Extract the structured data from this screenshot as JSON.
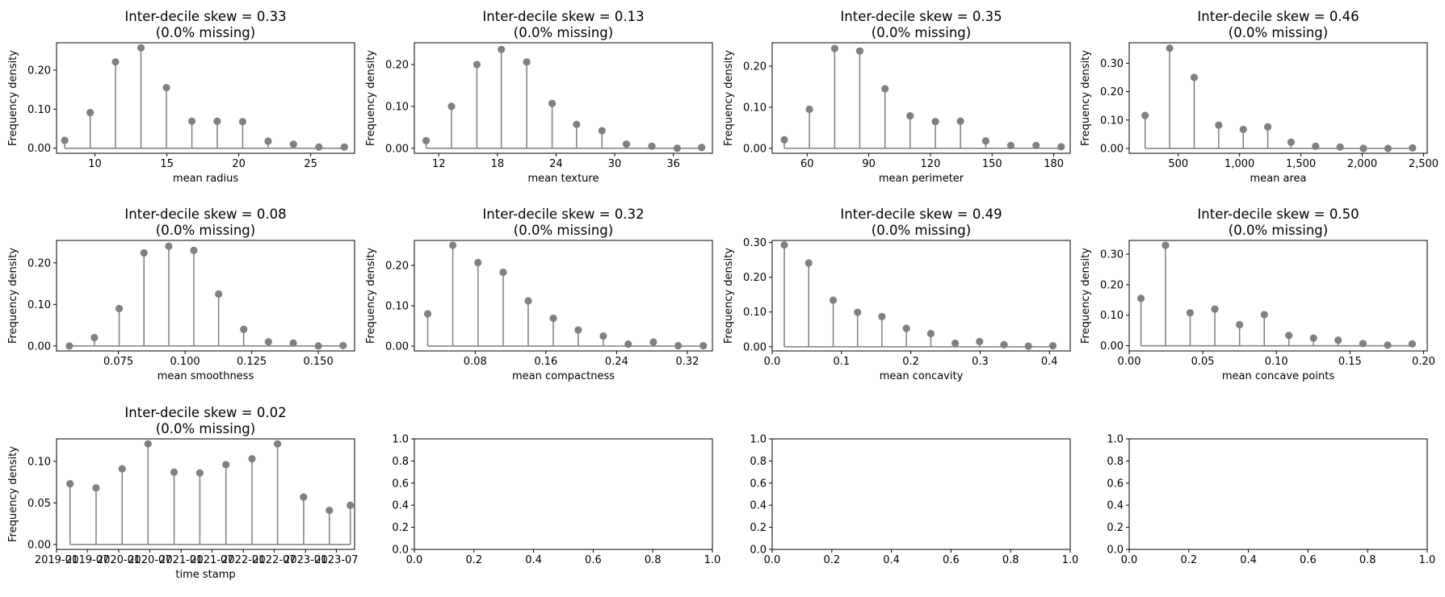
{
  "colors": {
    "stem": "#7f7f7f",
    "marker": "#808080",
    "axes": "#000000"
  },
  "chart_data": [
    {
      "type": "stem",
      "title": "Inter-decile skew = 0.33",
      "subtitle": "(0.0% missing)",
      "xlabel": "mean radius",
      "ylabel": "Frequency density",
      "xlim": [
        7.33,
        28.05
      ],
      "ylim": [
        -0.013,
        0.27
      ],
      "xticks": [
        10,
        15,
        20,
        25
      ],
      "xticklabels": [
        "10",
        "15",
        "20",
        "25"
      ],
      "yticks": [
        0,
        0.1,
        0.2
      ],
      "yticklabels": [
        "0.00",
        "0.10",
        "0.20"
      ],
      "x": [
        7.9,
        9.67,
        11.43,
        13.2,
        14.97,
        16.74,
        18.5,
        20.27,
        22.04,
        23.8,
        25.57,
        27.34
      ],
      "y": [
        0.02,
        0.091,
        0.221,
        0.257,
        0.155,
        0.069,
        0.069,
        0.068,
        0.018,
        0.01,
        0.003,
        0.003
      ],
      "baseline": 0
    },
    {
      "type": "stem",
      "title": "Inter-decile skew = 0.13",
      "subtitle": "(0.0% missing)",
      "xlabel": "mean texture",
      "ylabel": "Frequency density",
      "xlim": [
        9.5,
        40.0
      ],
      "ylim": [
        -0.012,
        0.252
      ],
      "xticks": [
        12,
        18,
        24,
        30,
        36
      ],
      "xticklabels": [
        "12",
        "18",
        "24",
        "30",
        "36"
      ],
      "yticks": [
        0,
        0.1,
        0.2
      ],
      "yticklabels": [
        "0.00",
        "0.10",
        "0.20"
      ],
      "x": [
        10.7,
        13.3,
        15.9,
        18.4,
        21.0,
        23.6,
        26.1,
        28.7,
        31.2,
        33.8,
        36.4,
        38.9
      ],
      "y": [
        0.018,
        0.1,
        0.2,
        0.236,
        0.206,
        0.107,
        0.057,
        0.042,
        0.01,
        0.005,
        0.0,
        0.002
      ],
      "baseline": 0
    },
    {
      "type": "stem",
      "title": "Inter-decile skew = 0.35",
      "subtitle": "(0.0% missing)",
      "xlabel": "mean perimeter",
      "ylabel": "Frequency density",
      "xlim": [
        43.0,
        188.0
      ],
      "ylim": [
        -0.012,
        0.257
      ],
      "xticks": [
        60,
        90,
        120,
        150,
        180
      ],
      "xticklabels": [
        "60",
        "90",
        "120",
        "150",
        "180"
      ],
      "yticks": [
        0,
        0.1,
        0.2
      ],
      "yticklabels": [
        "0.00",
        "0.10",
        "0.20"
      ],
      "x": [
        48.9,
        61.1,
        73.4,
        85.6,
        97.9,
        110.1,
        122.4,
        134.6,
        146.9,
        159.1,
        171.4,
        183.6
      ],
      "y": [
        0.021,
        0.095,
        0.243,
        0.237,
        0.145,
        0.079,
        0.065,
        0.066,
        0.018,
        0.007,
        0.007,
        0.004
      ],
      "baseline": 0
    },
    {
      "type": "stem",
      "title": "Inter-decile skew = 0.46",
      "subtitle": "(0.0% missing)",
      "xlabel": "mean area",
      "ylabel": "Frequency density",
      "xlim": [
        100,
        2530
      ],
      "ylim": [
        -0.017,
        0.372
      ],
      "xticks": [
        500,
        1000,
        1500,
        2000,
        2500
      ],
      "xticklabels": [
        "500",
        "1,000",
        "1,500",
        "2,000",
        "2,500"
      ],
      "yticks": [
        0,
        0.1,
        0.2,
        0.3
      ],
      "yticklabels": [
        "0.00",
        "0.10",
        "0.20",
        "0.30"
      ],
      "x": [
        230,
        430,
        630,
        830,
        1030,
        1230,
        1420,
        1620,
        1820,
        2010,
        2210,
        2410
      ],
      "y": [
        0.116,
        0.353,
        0.25,
        0.082,
        0.067,
        0.076,
        0.022,
        0.008,
        0.005,
        0.0,
        0.0,
        0.002
      ],
      "baseline": 0
    },
    {
      "type": "stem",
      "title": "Inter-decile skew = 0.08",
      "subtitle": "(0.0% missing)",
      "xlabel": "mean smoothness",
      "ylabel": "Frequency density",
      "xlim": [
        0.0518,
        0.1636
      ],
      "ylim": [
        -0.012,
        0.254
      ],
      "xticks": [
        0.075,
        0.1,
        0.125,
        0.15
      ],
      "xticklabels": [
        "0.075",
        "0.100",
        "0.125",
        "0.150"
      ],
      "yticks": [
        0,
        0.1,
        0.2
      ],
      "yticklabels": [
        "0.00",
        "0.10",
        "0.20"
      ],
      "x": [
        0.0566,
        0.066,
        0.0753,
        0.0846,
        0.0939,
        0.1033,
        0.1126,
        0.122,
        0.1313,
        0.1406,
        0.15,
        0.1593
      ],
      "y": [
        0.0,
        0.02,
        0.09,
        0.224,
        0.24,
        0.23,
        0.125,
        0.04,
        0.01,
        0.007,
        0.0,
        0.001
      ],
      "baseline": 0
    },
    {
      "type": "stem",
      "title": "Inter-decile skew = 0.32",
      "subtitle": "(0.0% missing)",
      "xlabel": "mean compactness",
      "ylabel": "Frequency density",
      "xlim": [
        0.0112,
        0.3484
      ],
      "ylim": [
        -0.012,
        0.262
      ],
      "xticks": [
        0.08,
        0.16,
        0.24,
        0.32
      ],
      "xticklabels": [
        "0.08",
        "0.16",
        "0.24",
        "0.32"
      ],
      "yticks": [
        0,
        0.1,
        0.2
      ],
      "yticklabels": [
        "0.00",
        "0.10",
        "0.20"
      ],
      "x": [
        0.0263,
        0.0547,
        0.0832,
        0.1117,
        0.14,
        0.1684,
        0.1966,
        0.225,
        0.2532,
        0.2816,
        0.3097,
        0.3381
      ],
      "y": [
        0.08,
        0.25,
        0.207,
        0.183,
        0.112,
        0.069,
        0.04,
        0.025,
        0.005,
        0.01,
        0.001,
        0.001
      ],
      "baseline": 0
    },
    {
      "type": "stem",
      "title": "Inter-decile skew = 0.49",
      "subtitle": "(0.0% missing)",
      "xlabel": "mean concavity",
      "ylabel": "Frequency density",
      "xlim": [
        0.0,
        0.43
      ],
      "ylim": [
        -0.012,
        0.306
      ],
      "xticks": [
        0,
        0.1,
        0.2,
        0.3,
        0.4
      ],
      "xticklabels": [
        "0.0",
        "0.1",
        "0.2",
        "0.3",
        "0.4"
      ],
      "yticks": [
        0,
        0.1,
        0.2,
        0.3
      ],
      "yticklabels": [
        "0.00",
        "0.10",
        "0.20",
        "0.30"
      ],
      "x": [
        0.0175,
        0.0527,
        0.088,
        0.1232,
        0.1583,
        0.1936,
        0.2289,
        0.2641,
        0.2993,
        0.3345,
        0.3697,
        0.405
      ],
      "y": [
        0.293,
        0.241,
        0.134,
        0.099,
        0.087,
        0.053,
        0.038,
        0.01,
        0.015,
        0.006,
        0.002,
        0.003
      ],
      "baseline": 0
    },
    {
      "type": "stem",
      "title": "Inter-decile skew = 0.50",
      "subtitle": "(0.0% missing)",
      "xlabel": "mean concave points",
      "ylabel": "Frequency density",
      "xlim": [
        0.0,
        0.2025
      ],
      "ylim": [
        -0.017,
        0.345
      ],
      "xticks": [
        0,
        0.05,
        0.1,
        0.15,
        0.2
      ],
      "xticklabels": [
        "0.00",
        "0.05",
        "0.10",
        "0.15",
        "0.20"
      ],
      "yticks": [
        0,
        0.1,
        0.2,
        0.3
      ],
      "yticklabels": [
        "0.00",
        "0.10",
        "0.20",
        "0.30"
      ],
      "x": [
        0.008,
        0.0247,
        0.0414,
        0.0582,
        0.075,
        0.0918,
        0.1085,
        0.1252,
        0.142,
        0.1588,
        0.1756,
        0.1923
      ],
      "y": [
        0.155,
        0.329,
        0.108,
        0.12,
        0.069,
        0.102,
        0.034,
        0.025,
        0.018,
        0.007,
        0.002,
        0.006
      ],
      "baseline": 0
    },
    {
      "type": "stem",
      "title": "Inter-decile skew = 0.02",
      "subtitle": "(0.0% missing)",
      "xlabel": "time stamp",
      "ylabel": "Frequency density",
      "x_is_date": true,
      "xlim": [
        "2019-01-01",
        "2023-10-16"
      ],
      "ylim": [
        -0.006,
        0.127
      ],
      "xticks": [
        "2019-01-01",
        "2019-07-01",
        "2020-01-01",
        "2020-07-01",
        "2021-01-01",
        "2021-07-01",
        "2022-01-01",
        "2022-07-01",
        "2023-01-01",
        "2023-07-01"
      ],
      "xticklabels": [
        "2019-01",
        "2019-07",
        "2020-01",
        "2020-07",
        "2021-01",
        "2021-07",
        "2022-01",
        "2022-07",
        "2023-01",
        "2023-07"
      ],
      "yticks": [
        0,
        0.05,
        0.1
      ],
      "yticklabels": [
        "0.00",
        "0.05",
        "0.10"
      ],
      "x": [
        "2019-03-21",
        "2019-08-21",
        "2020-01-21",
        "2020-06-21",
        "2020-11-21",
        "2021-04-21",
        "2021-09-21",
        "2022-02-21",
        "2022-07-21",
        "2022-12-21",
        "2023-05-21",
        "2023-09-21"
      ],
      "y": [
        0.073,
        0.068,
        0.091,
        0.121,
        0.087,
        0.086,
        0.096,
        0.103,
        0.121,
        0.057,
        0.041,
        0.047
      ],
      "baseline": 0
    },
    {
      "type": "empty",
      "xlim": [
        0,
        1
      ],
      "ylim": [
        0,
        1
      ],
      "xticks": [
        0,
        0.2,
        0.4,
        0.6,
        0.8,
        1.0
      ],
      "xticklabels": [
        "0.0",
        "0.2",
        "0.4",
        "0.6",
        "0.8",
        "1.0"
      ],
      "yticks": [
        0,
        0.2,
        0.4,
        0.6,
        0.8,
        1.0
      ],
      "yticklabels": [
        "0.0",
        "0.2",
        "0.4",
        "0.6",
        "0.8",
        "1.0"
      ]
    },
    {
      "type": "empty",
      "xlim": [
        0,
        1
      ],
      "ylim": [
        0,
        1
      ],
      "xticks": [
        0,
        0.2,
        0.4,
        0.6,
        0.8,
        1.0
      ],
      "xticklabels": [
        "0.0",
        "0.2",
        "0.4",
        "0.6",
        "0.8",
        "1.0"
      ],
      "yticks": [
        0,
        0.2,
        0.4,
        0.6,
        0.8,
        1.0
      ],
      "yticklabels": [
        "0.0",
        "0.2",
        "0.4",
        "0.6",
        "0.8",
        "1.0"
      ]
    },
    {
      "type": "empty",
      "xlim": [
        0,
        1
      ],
      "ylim": [
        0,
        1
      ],
      "xticks": [
        0,
        0.2,
        0.4,
        0.6,
        0.8,
        1.0
      ],
      "xticklabels": [
        "0.0",
        "0.2",
        "0.4",
        "0.6",
        "0.8",
        "1.0"
      ],
      "yticks": [
        0,
        0.2,
        0.4,
        0.6,
        0.8,
        1.0
      ],
      "yticklabels": [
        "0.0",
        "0.2",
        "0.4",
        "0.6",
        "0.8",
        "1.0"
      ]
    }
  ]
}
